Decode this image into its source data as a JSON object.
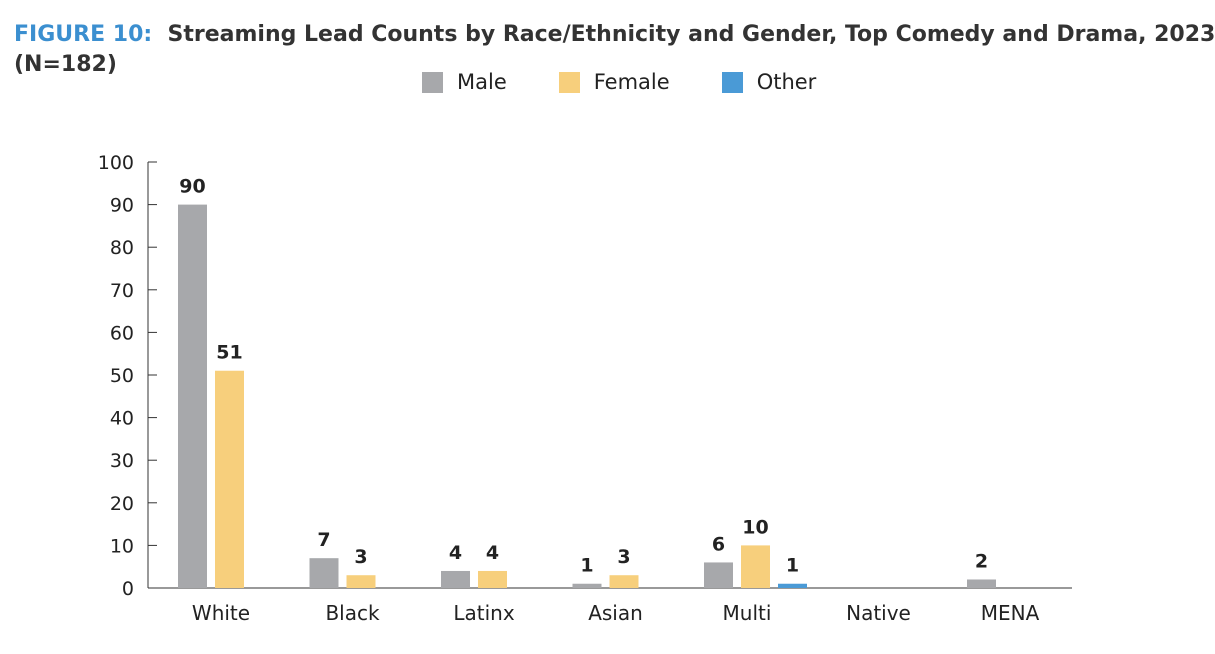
{
  "figure": {
    "label": "FIGURE 10:",
    "title": "Streaming Lead Counts by Race/Ethnicity and Gender, Top Comedy and Drama, 2023",
    "subtitle": "(N=182)"
  },
  "chart_data": {
    "type": "bar",
    "title": "Streaming Lead Counts by Race/Ethnicity and Gender, Top Comedy and Drama, 2023",
    "subtitle": "(N=182)",
    "xlabel": "",
    "ylabel": "",
    "ylim": [
      0,
      100
    ],
    "yticks": [
      0,
      10,
      20,
      30,
      40,
      50,
      60,
      70,
      80,
      90,
      100
    ],
    "grid": false,
    "legend_position": "top-center",
    "categories": [
      "White",
      "Black",
      "Latinx",
      "Asian",
      "Multi",
      "Native",
      "MENA"
    ],
    "series": [
      {
        "name": "Male",
        "color": "#a7a8ab",
        "values": [
          90,
          7,
          4,
          1,
          6,
          null,
          2
        ]
      },
      {
        "name": "Female",
        "color": "#f7cf7c",
        "values": [
          51,
          3,
          4,
          3,
          10,
          null,
          null
        ]
      },
      {
        "name": "Other",
        "color": "#4a9ad6",
        "values": [
          null,
          null,
          null,
          null,
          1,
          null,
          null
        ]
      }
    ]
  }
}
